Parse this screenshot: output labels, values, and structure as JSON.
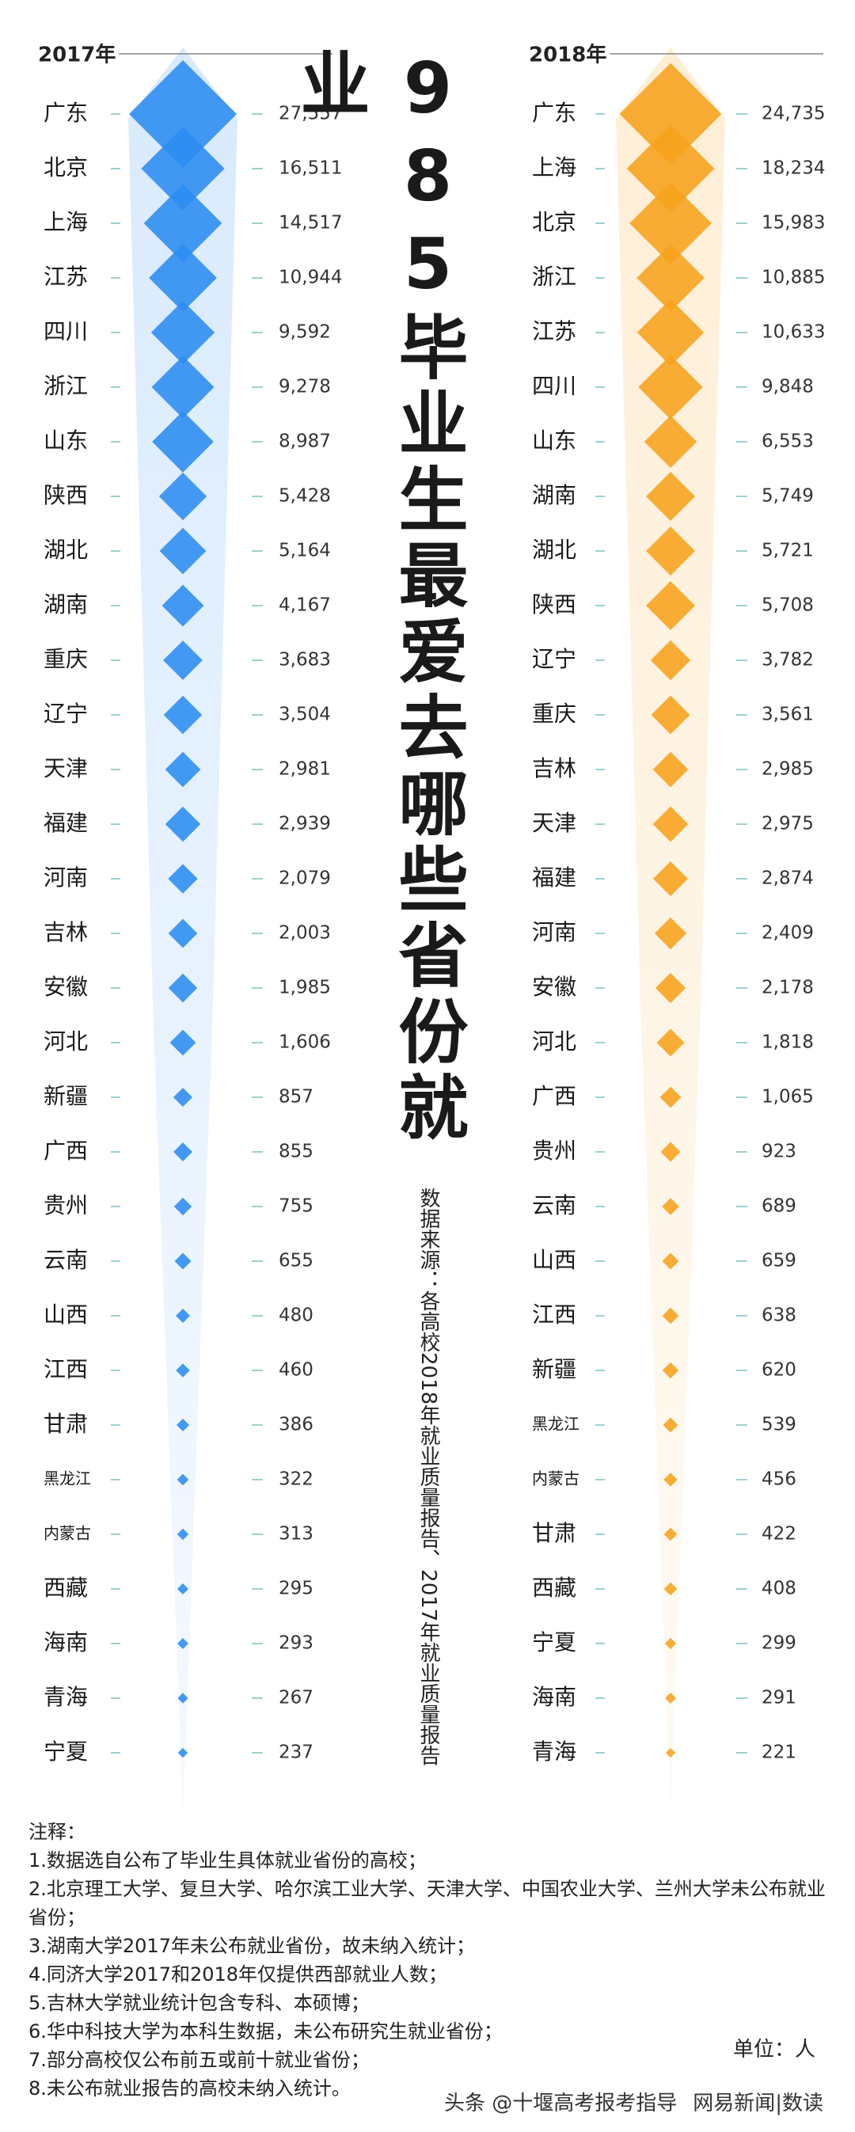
{
  "chart_data": [
    {
      "type": "diamond",
      "title": "2017年",
      "color": "#2b8cf0",
      "categories": [
        "广东",
        "北京",
        "上海",
        "江苏",
        "四川",
        "浙江",
        "山东",
        "陕西",
        "湖北",
        "湖南",
        "重庆",
        "辽宁",
        "天津",
        "福建",
        "河南",
        "吉林",
        "安徽",
        "河北",
        "新疆",
        "广西",
        "贵州",
        "云南",
        "山西",
        "江西",
        "甘肃",
        "黑龙江",
        "内蒙古",
        "西藏",
        "海南",
        "青海",
        "宁夏"
      ],
      "values": [
        27557,
        16511,
        14517,
        10944,
        9592,
        9278,
        8987,
        5428,
        5164,
        4167,
        3683,
        3504,
        2981,
        2939,
        2079,
        2003,
        1985,
        1606,
        857,
        855,
        755,
        655,
        480,
        460,
        386,
        322,
        313,
        295,
        293,
        267,
        237
      ],
      "value_labels": [
        "27,557",
        "16,511",
        "14,517",
        "10,944",
        "9,592",
        "9,278",
        "8,987",
        "5,428",
        "5,164",
        "4,167",
        "3,683",
        "3,504",
        "2,981",
        "2,939",
        "2,079",
        "2,003",
        "1,985",
        "1,606",
        "857",
        "855",
        "755",
        "655",
        "480",
        "460",
        "386",
        "322",
        "313",
        "295",
        "293",
        "267",
        "237"
      ]
    },
    {
      "type": "diamond",
      "title": "2018年",
      "color": "#f7a21b",
      "categories": [
        "广东",
        "上海",
        "北京",
        "浙江",
        "江苏",
        "四川",
        "山东",
        "湖南",
        "湖北",
        "陕西",
        "辽宁",
        "重庆",
        "吉林",
        "天津",
        "福建",
        "河南",
        "安徽",
        "河北",
        "广西",
        "贵州",
        "云南",
        "山西",
        "江西",
        "新疆",
        "黑龙江",
        "内蒙古",
        "甘肃",
        "西藏",
        "宁夏",
        "海南",
        "青海"
      ],
      "values": [
        24735,
        18234,
        15983,
        10885,
        10633,
        9848,
        6553,
        5749,
        5721,
        5708,
        3782,
        3561,
        2985,
        2975,
        2874,
        2409,
        2178,
        1818,
        1065,
        923,
        689,
        659,
        638,
        620,
        539,
        456,
        422,
        408,
        299,
        291,
        221
      ],
      "value_labels": [
        "24,735",
        "18,234",
        "15,983",
        "10,885",
        "10,633",
        "9,848",
        "6,553",
        "5,749",
        "5,721",
        "5,708",
        "3,782",
        "3,561",
        "2,985",
        "2,975",
        "2,874",
        "2,409",
        "2,178",
        "1,818",
        "1,065",
        "923",
        "689",
        "659",
        "638",
        "620",
        "539",
        "456",
        "422",
        "408",
        "299",
        "291",
        "221"
      ]
    }
  ],
  "title": "985毕业生最爱去哪些省份就业",
  "source": "数据来源：各高校2018年就业质量报告、2017年就业质量报告",
  "notes_title": "注释：",
  "notes": [
    "1.数据选自公布了毕业生具体就业省份的高校；",
    "2.北京理工大学、复旦大学、哈尔滨工业大学、天津大学、中国农业大学、兰州大学未公布就业省份；",
    "3.湖南大学2017年未公布就业省份，故未纳入统计；",
    "4.同济大学2017和2018年仅提供西部就业人数；",
    "5.吉林大学就业统计包含专科、本硕博；",
    "6.华中科技大学为本科生数据，未公布研究生就业省份；",
    "7.部分高校仅公布前五或前十就业省份；",
    "8.未公布就业报告的高校未纳入统计。"
  ],
  "unit": "单位：人",
  "footer": [
    "头条 @十堰高考报考指导",
    "网易新闻|数读"
  ]
}
